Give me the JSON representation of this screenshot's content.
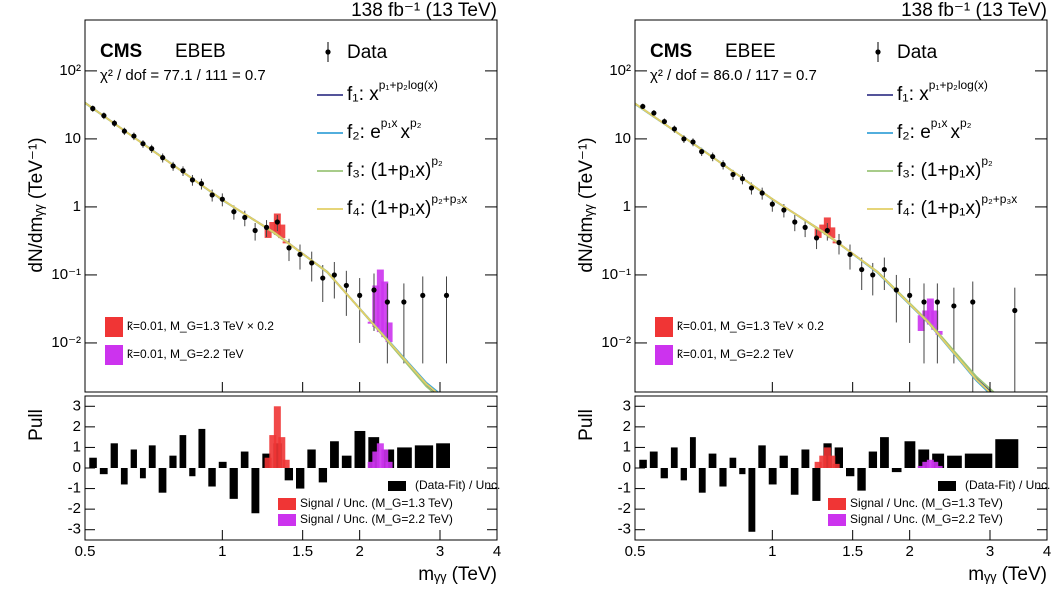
{
  "chart_data": [
    {
      "type": "spectrum",
      "lumi": "138 fb⁻¹ (13 TeV)",
      "experiment": "CMS",
      "category": "EBEB",
      "chi2": "χ² / dof = 77.1 / 111 = 0.7",
      "ylabel": "dN/dmᵧᵧ (TeV⁻¹)",
      "xlim": [
        0.5,
        4
      ],
      "ylim": [
        0.0019,
        560
      ],
      "log_x": true,
      "log_y": true,
      "xticks": [
        0.5,
        1,
        1.5,
        2,
        3,
        4
      ],
      "yticks": [
        {
          "value": 0.01,
          "label": "10⁻²"
        },
        {
          "value": 0.1,
          "label": "10⁻¹"
        },
        1,
        10,
        {
          "value": 100,
          "label": "10²"
        }
      ],
      "data": {
        "name": "Data",
        "color": "#000000",
        "x": [
          0.52,
          0.55,
          0.58,
          0.61,
          0.64,
          0.67,
          0.7,
          0.74,
          0.78,
          0.82,
          0.86,
          0.9,
          0.95,
          1.0,
          1.06,
          1.12,
          1.18,
          1.25,
          1.32,
          1.4,
          1.48,
          1.57,
          1.66,
          1.76,
          1.87,
          2.0,
          2.15,
          2.3,
          2.5,
          2.75,
          3.1
        ],
        "values": [
          28,
          22,
          17,
          13,
          11,
          8.5,
          7.2,
          5.3,
          4.0,
          3.4,
          2.5,
          2.2,
          1.5,
          1.3,
          0.85,
          0.7,
          0.45,
          0.5,
          0.6,
          0.25,
          0.2,
          0.15,
          0.09,
          0.1,
          0.07,
          0.05,
          0.06,
          0.04,
          0.04,
          0.05,
          0.05
        ],
        "errors": [
          3,
          2.5,
          2,
          1.6,
          1.4,
          1.1,
          1,
          0.8,
          0.6,
          0.55,
          0.45,
          0.4,
          0.3,
          0.28,
          0.2,
          0.18,
          0.13,
          0.14,
          0.16,
          0.09,
          0.08,
          0.07,
          0.05,
          0.055,
          0.045,
          0.04,
          0.045,
          0.035,
          0.035,
          0.045,
          0.045
        ]
      },
      "x": [
        0.5,
        0.7,
        1,
        1.3,
        1.7,
        2.2,
        2.8,
        3.4
      ],
      "series": [
        {
          "name": "f₁: x",
          "exponent": "p₁+p₂log(x)",
          "color": "#3b3b8c",
          "values": [
            34,
            6.9,
            1.27,
            0.42,
            0.11,
            0.0155,
            0.0024,
            0.0008
          ]
        },
        {
          "name": "f₂: e",
          "exponent": "p₁x",
          "suffix": "x",
          "suffix_exponent": "p₂",
          "color": "#3aa3d8",
          "values": [
            33.5,
            6.95,
            1.26,
            0.42,
            0.108,
            0.0158,
            0.0026,
            0.0009
          ]
        },
        {
          "name": "f₃: (1+p₁x)",
          "exponent": "p₂",
          "color": "#9cc47a",
          "values": [
            34.2,
            6.85,
            1.28,
            0.41,
            0.111,
            0.0152,
            0.0023,
            0.00075
          ]
        },
        {
          "name": "f₄: (1+p₁x)",
          "exponent": "p₂+p₃x",
          "color": "#e3cf66",
          "values": [
            33.8,
            6.9,
            1.27,
            0.42,
            0.109,
            0.0156,
            0.0025,
            0.00085
          ]
        }
      ],
      "signals": [
        {
          "name": "k̃=0.01, M_G=1.3 TeV × 0.2",
          "color": "#f03535",
          "x": [
            1.26,
            1.29,
            1.32,
            1.35,
            1.38
          ],
          "values": [
            0.35,
            0.6,
            0.8,
            0.55,
            0.3
          ]
        },
        {
          "name": "k̃=0.01, M_G=2.2 TeV",
          "color": "#cc33ee",
          "x": [
            2.12,
            2.17,
            2.22,
            2.27,
            2.32
          ],
          "values": [
            0.02,
            0.07,
            0.12,
            0.08,
            0.02
          ]
        }
      ]
    },
    {
      "type": "bar",
      "ylabel": "Pull",
      "xlabel": "mᵧᵧ (TeV)",
      "xlim": [
        0.5,
        4
      ],
      "ylim": [
        -3.5,
        3.5
      ],
      "log_x": true,
      "xticks": [
        0.5,
        1,
        1.5,
        2,
        3,
        4
      ],
      "yticks": [
        -3,
        -2,
        -1,
        0,
        1,
        2,
        3
      ],
      "name": "(Data-Fit) / Unc.",
      "color": "#000000",
      "x": [
        0.52,
        0.55,
        0.58,
        0.61,
        0.64,
        0.67,
        0.7,
        0.74,
        0.78,
        0.82,
        0.86,
        0.9,
        0.95,
        1.0,
        1.06,
        1.12,
        1.18,
        1.25,
        1.32,
        1.4,
        1.48,
        1.57,
        1.66,
        1.76,
        1.87,
        2.0,
        2.15,
        2.3,
        2.5,
        2.75,
        3.1
      ],
      "values": [
        0.5,
        -0.3,
        1.2,
        -0.8,
        0.9,
        -0.5,
        1.1,
        -1.2,
        0.6,
        1.6,
        -0.4,
        1.9,
        -0.9,
        0.3,
        -1.5,
        0.8,
        -2.2,
        0.7,
        1.2,
        -0.6,
        -1.0,
        0.9,
        -0.7,
        1.3,
        0.6,
        1.8,
        1.5,
        0.9,
        1.0,
        1.1,
        1.2
      ],
      "signals": [
        {
          "name": "Signal / Unc. (M_G=1.3 TeV)",
          "color": "#f03535",
          "x": [
            1.26,
            1.29,
            1.32,
            1.35,
            1.38
          ],
          "values": [
            0.5,
            1.6,
            3.0,
            1.5,
            0.4
          ]
        },
        {
          "name": "Signal / Unc. (M_G=2.2 TeV)",
          "color": "#cc33ee",
          "x": [
            2.12,
            2.17,
            2.22,
            2.27,
            2.32
          ],
          "values": [
            0.3,
            0.8,
            1.2,
            0.9,
            0.3
          ]
        }
      ]
    },
    {
      "type": "spectrum",
      "lumi": "138 fb⁻¹ (13 TeV)",
      "experiment": "CMS",
      "category": "EBEE",
      "chi2": "χ² / dof = 86.0 / 117 = 0.7",
      "ylabel": "dN/dmᵧᵧ (TeV⁻¹)",
      "xlim": [
        0.5,
        4
      ],
      "ylim": [
        0.0019,
        560
      ],
      "log_x": true,
      "log_y": true,
      "xticks": [
        0.5,
        1,
        1.5,
        2,
        3,
        4
      ],
      "yticks": [
        {
          "value": 0.01,
          "label": "10⁻²"
        },
        {
          "value": 0.1,
          "label": "10⁻¹"
        },
        1,
        10,
        {
          "value": 100,
          "label": "10²"
        }
      ],
      "data": {
        "name": "Data",
        "color": "#000000",
        "x": [
          0.52,
          0.55,
          0.58,
          0.61,
          0.64,
          0.67,
          0.7,
          0.74,
          0.78,
          0.82,
          0.86,
          0.9,
          0.95,
          1.0,
          1.06,
          1.12,
          1.18,
          1.25,
          1.32,
          1.4,
          1.48,
          1.57,
          1.66,
          1.76,
          1.87,
          2.0,
          2.15,
          2.3,
          2.5,
          2.75,
          3.4
        ],
        "values": [
          30,
          24,
          18,
          14,
          10,
          9,
          6.5,
          5.5,
          4.2,
          3.0,
          2.6,
          1.9,
          1.6,
          1.1,
          0.9,
          0.6,
          0.5,
          0.35,
          0.45,
          0.3,
          0.2,
          0.12,
          0.1,
          0.12,
          0.06,
          0.05,
          0.04,
          0.04,
          0.035,
          0.04,
          0.03
        ],
        "errors": [
          3,
          2.6,
          2,
          1.7,
          1.3,
          1.2,
          0.9,
          0.8,
          0.65,
          0.5,
          0.45,
          0.38,
          0.32,
          0.25,
          0.2,
          0.16,
          0.14,
          0.11,
          0.13,
          0.1,
          0.08,
          0.06,
          0.05,
          0.06,
          0.04,
          0.04,
          0.035,
          0.035,
          0.03,
          0.04,
          0.035
        ]
      },
      "x": [
        0.5,
        0.7,
        1,
        1.3,
        1.7,
        2.2,
        2.8,
        3.4
      ],
      "series": [
        {
          "name": "f₁: x",
          "exponent": "p₁+p₂log(x)",
          "color": "#3b3b8c",
          "values": [
            33,
            7.0,
            1.3,
            0.42,
            0.11,
            0.02,
            0.003,
            0.0009
          ]
        },
        {
          "name": "f₂: e",
          "exponent": "p₁x",
          "suffix": "x",
          "suffix_exponent": "p₂",
          "color": "#3aa3d8",
          "values": [
            32.5,
            7.05,
            1.29,
            0.42,
            0.108,
            0.0195,
            0.0028,
            0.0008
          ]
        },
        {
          "name": "f₃: (1+p₁x)",
          "exponent": "p₂",
          "color": "#9cc47a",
          "values": [
            33.3,
            6.95,
            1.31,
            0.41,
            0.112,
            0.0205,
            0.0032,
            0.001
          ]
        },
        {
          "name": "f₄: (1+p₁x)",
          "exponent": "p₂+p₃x",
          "color": "#e3cf66",
          "values": [
            33,
            7.0,
            1.3,
            0.42,
            0.11,
            0.0198,
            0.0029,
            0.00085
          ]
        }
      ],
      "signals": [
        {
          "name": "k̃=0.01, M_G=1.3 TeV × 0.2",
          "color": "#f03535",
          "x": [
            1.26,
            1.29,
            1.32,
            1.35,
            1.38
          ],
          "values": [
            0.35,
            0.55,
            0.7,
            0.5,
            0.3
          ]
        },
        {
          "name": "k̃=0.01, M_G=2.2 TeV",
          "color": "#cc33ee",
          "x": [
            2.12,
            2.17,
            2.22,
            2.27,
            2.32
          ],
          "values": [
            0.015,
            0.03,
            0.045,
            0.03,
            0.015
          ]
        }
      ]
    },
    {
      "type": "bar",
      "ylabel": "Pull",
      "xlabel": "mᵧᵧ (TeV)",
      "xlim": [
        0.5,
        4
      ],
      "ylim": [
        -3.5,
        3.5
      ],
      "log_x": true,
      "xticks": [
        0.5,
        1,
        1.5,
        2,
        3,
        4
      ],
      "yticks": [
        -3,
        -2,
        -1,
        0,
        1,
        2,
        3
      ],
      "name": "(Data-Fit) / Unc.",
      "color": "#000000",
      "x": [
        0.52,
        0.55,
        0.58,
        0.61,
        0.64,
        0.67,
        0.7,
        0.74,
        0.78,
        0.82,
        0.86,
        0.9,
        0.95,
        1.0,
        1.06,
        1.12,
        1.18,
        1.25,
        1.32,
        1.4,
        1.48,
        1.57,
        1.66,
        1.76,
        1.87,
        2.0,
        2.15,
        2.3,
        2.5,
        2.75,
        3.4
      ],
      "values": [
        0.4,
        0.8,
        -0.5,
        1.0,
        -0.6,
        1.5,
        -1.2,
        0.7,
        -0.9,
        0.5,
        -0.3,
        -3.1,
        1.1,
        -0.8,
        0.6,
        -1.3,
        0.9,
        -1.6,
        1.2,
        1.0,
        -0.4,
        -1.1,
        0.8,
        1.5,
        -0.2,
        1.3,
        0.9,
        0.7,
        0.6,
        0.7,
        1.4
      ],
      "signals": [
        {
          "name": "Signal / Unc. (M_G=1.3 TeV)",
          "color": "#f03535",
          "x": [
            1.26,
            1.29,
            1.32,
            1.35,
            1.38
          ],
          "values": [
            0.3,
            0.6,
            1.0,
            0.6,
            0.2
          ]
        },
        {
          "name": "Signal / Unc. (M_G=2.2 TeV)",
          "color": "#cc33ee",
          "x": [
            2.12,
            2.17,
            2.22,
            2.27,
            2.32
          ],
          "values": [
            0.1,
            0.3,
            0.4,
            0.3,
            0.1
          ]
        }
      ]
    }
  ]
}
